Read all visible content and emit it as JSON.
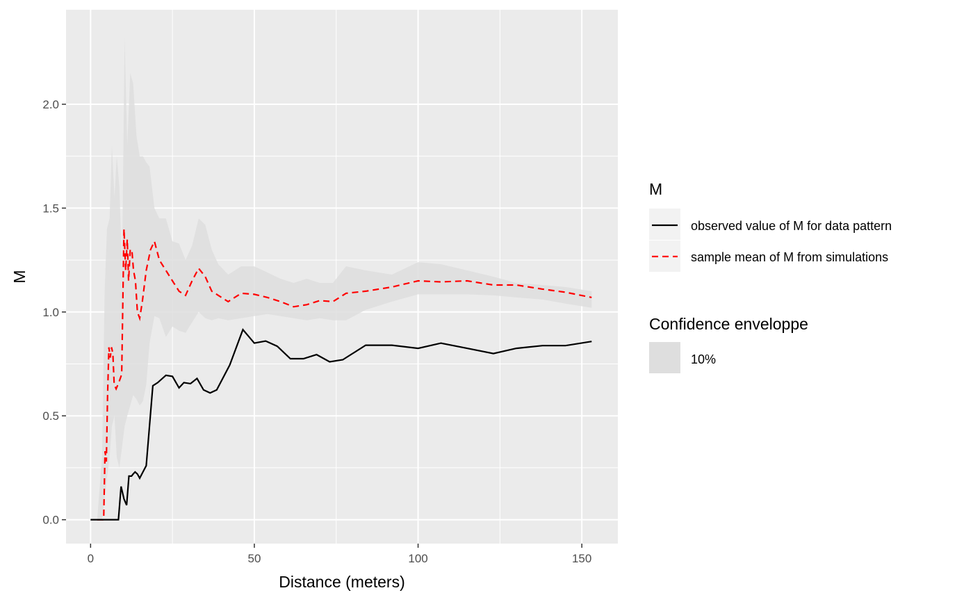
{
  "chart_data": {
    "type": "line",
    "xlabel": "Distance (meters)",
    "ylabel": "M",
    "xlim": [
      -7.5,
      161
    ],
    "ylim": [
      -0.115,
      2.455
    ],
    "x_ticks": [
      0,
      50,
      100,
      150
    ],
    "y_ticks": [
      0.0,
      0.5,
      1.0,
      1.5,
      2.0
    ],
    "x_tick_labels": [
      "0",
      "50",
      "100",
      "150"
    ],
    "y_tick_labels": [
      "0.0",
      "0.5",
      "1.0",
      "1.5",
      "2.0"
    ],
    "grid": true,
    "legend_position": "right",
    "colors": {
      "panel": "#ebebeb",
      "grid": "#ffffff",
      "observed": "#000000",
      "mean": "#ff0000",
      "envelope": "#dedede"
    },
    "series": [
      {
        "name": "observed value of M for data pattern",
        "style": "solid",
        "x": [
          0,
          2,
          4,
          6,
          8.5,
          9.3,
          10.2,
          11,
          11.7,
          12.5,
          13,
          13.6,
          14.3,
          15,
          16,
          17,
          19,
          20.5,
          23,
          25,
          27,
          28.5,
          30.5,
          32.5,
          34.5,
          36.5,
          38.5,
          42.5,
          46.5,
          50,
          53.5,
          57,
          61,
          65,
          69,
          73,
          77,
          84,
          92,
          100,
          107,
          115,
          123,
          130,
          138,
          145,
          153
        ],
        "values": [
          0,
          0,
          0,
          0,
          0,
          0.16,
          0.1,
          0.07,
          0.21,
          0.21,
          0.22,
          0.23,
          0.22,
          0.2,
          0.23,
          0.26,
          0.645,
          0.66,
          0.695,
          0.69,
          0.635,
          0.66,
          0.655,
          0.68,
          0.625,
          0.61,
          0.625,
          0.745,
          0.915,
          0.85,
          0.86,
          0.835,
          0.775,
          0.775,
          0.795,
          0.76,
          0.77,
          0.84,
          0.84,
          0.825,
          0.85,
          0.825,
          0.8,
          0.825,
          0.838,
          0.838,
          0.858
        ]
      },
      {
        "name": "sample mean of M from simulations",
        "style": "dashed",
        "x": [
          2,
          4,
          4.4,
          4.8,
          5.2,
          5.6,
          6,
          6.4,
          6.8,
          7.2,
          7.8,
          8.6,
          9.5,
          10.2,
          10.7,
          11.2,
          11.6,
          12.1,
          12.6,
          13.1,
          13.7,
          14.3,
          15,
          15.8,
          17,
          18.3,
          19.5,
          21,
          23,
          25,
          27,
          29,
          31,
          33,
          35,
          37,
          39,
          42,
          46,
          50,
          54,
          58,
          62,
          66,
          70,
          74,
          78,
          84,
          92,
          100,
          107,
          115,
          123,
          130,
          138,
          145,
          153
        ],
        "values": [
          0,
          0,
          0.33,
          0.28,
          0.6,
          0.83,
          0.78,
          0.83,
          0.8,
          0.65,
          0.63,
          0.66,
          0.7,
          1.4,
          1.2,
          1.35,
          1.15,
          1.3,
          1.3,
          1.2,
          1.15,
          1.0,
          0.97,
          1.05,
          1.2,
          1.3,
          1.34,
          1.25,
          1.2,
          1.15,
          1.1,
          1.08,
          1.15,
          1.21,
          1.17,
          1.1,
          1.08,
          1.05,
          1.09,
          1.085,
          1.07,
          1.05,
          1.025,
          1.035,
          1.055,
          1.05,
          1.09,
          1.1,
          1.12,
          1.15,
          1.145,
          1.15,
          1.13,
          1.13,
          1.11,
          1.095,
          1.07
        ]
      }
    ],
    "envelope": {
      "name": "10%",
      "x": [
        2,
        3.5,
        4.3,
        5,
        5.8,
        6.5,
        7.3,
        8,
        8.8,
        9.6,
        10.4,
        11.2,
        12.1,
        13,
        14,
        15,
        16,
        17,
        18,
        19.5,
        21,
        23,
        25,
        27,
        29,
        31,
        33,
        35,
        37,
        39,
        42,
        46,
        50,
        54,
        58,
        62,
        66,
        70,
        74,
        78,
        84,
        92,
        100,
        107,
        115,
        123,
        130,
        138,
        145,
        153
      ],
      "lower": [
        0,
        0,
        0.1,
        0.2,
        0.3,
        0.45,
        0.5,
        0.3,
        0.25,
        0.35,
        0.45,
        0.5,
        0.55,
        0.6,
        0.58,
        0.55,
        0.57,
        0.65,
        0.85,
        0.98,
        0.97,
        0.88,
        0.93,
        0.91,
        0.9,
        0.95,
        1.0,
        0.97,
        0.96,
        0.97,
        0.96,
        0.97,
        0.98,
        0.99,
        0.98,
        0.97,
        0.96,
        0.97,
        0.96,
        0.96,
        1.01,
        1.05,
        1.085,
        1.085,
        1.085,
        1.08,
        1.07,
        1.06,
        1.04,
        1.02
      ],
      "upper": [
        0,
        0.3,
        1.1,
        1.4,
        1.45,
        1.8,
        1.55,
        1.75,
        1.6,
        1.2,
        2.32,
        1.8,
        2.15,
        2.1,
        1.85,
        1.75,
        1.75,
        1.72,
        1.7,
        1.5,
        1.45,
        1.45,
        1.34,
        1.33,
        1.25,
        1.32,
        1.45,
        1.42,
        1.3,
        1.23,
        1.18,
        1.22,
        1.22,
        1.19,
        1.16,
        1.14,
        1.16,
        1.14,
        1.14,
        1.22,
        1.2,
        1.18,
        1.24,
        1.23,
        1.2,
        1.17,
        1.14,
        1.13,
        1.12,
        1.1
      ]
    }
  },
  "legend": {
    "series_title": "M",
    "series_labels": [
      "observed value of M for data pattern",
      "sample mean of M from simulations"
    ],
    "envelope_title": "Confidence enveloppe",
    "envelope_label": "10%"
  }
}
